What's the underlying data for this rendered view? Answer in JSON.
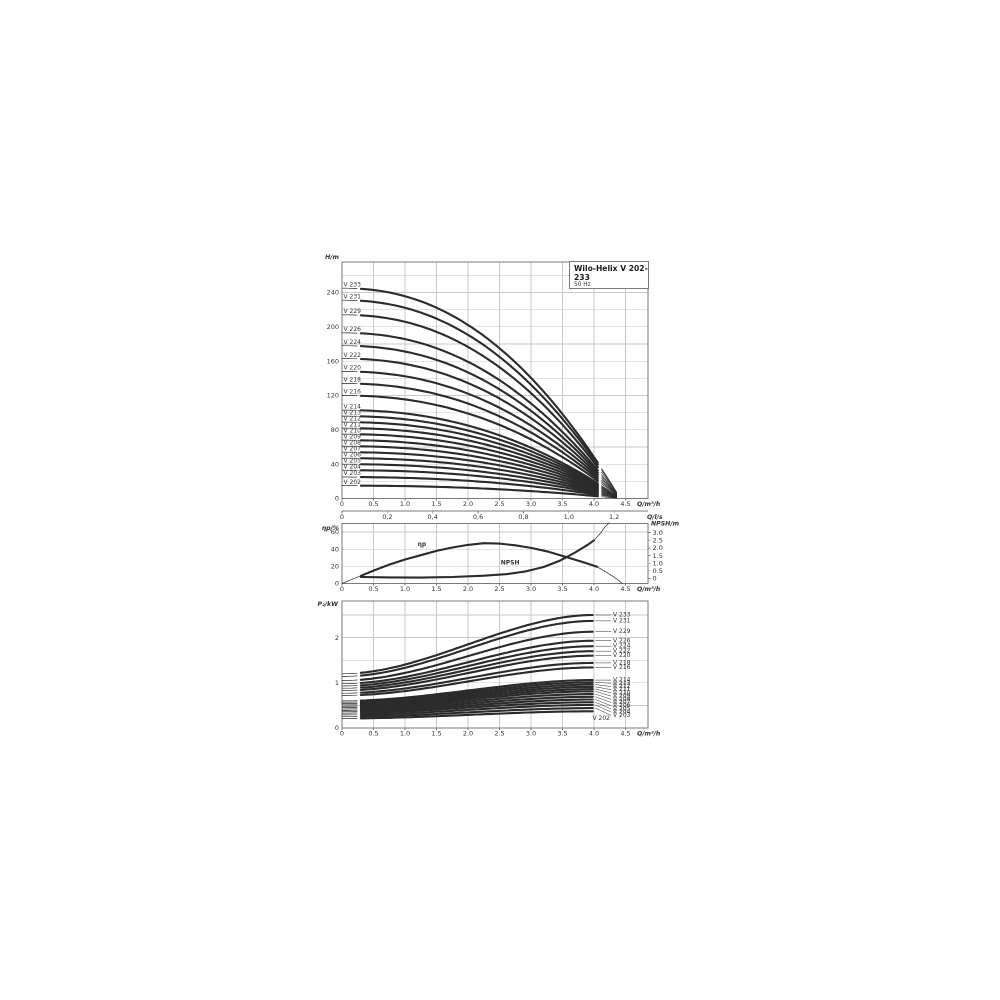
{
  "title_box": {
    "title": "Wilo-Helix V 202-233",
    "subtitle": "50 Hz"
  },
  "colors": {
    "curve": "#2b2b2b",
    "grid": "#c9c9c9",
    "frame": "#7a7a7a",
    "text": "#333333",
    "label": "#1a1a1a"
  },
  "chart_data": [
    {
      "type": "line",
      "id": "head-flow",
      "ylabel": "H/m",
      "xlabel": "Q/m³/h",
      "x2label": "Q/l/s",
      "xlim": [
        0,
        4.5
      ],
      "ylim": [
        0,
        260
      ],
      "x2lim": [
        0,
        1.2
      ],
      "grid": true,
      "xticks": [
        [
          0,
          "0"
        ],
        [
          0.5,
          "0.5"
        ],
        [
          1,
          "1.0"
        ],
        [
          1.5,
          "1.5"
        ],
        [
          2,
          "2.0"
        ],
        [
          2.5,
          "2.5"
        ],
        [
          3,
          "3.0"
        ],
        [
          3.5,
          "3.5"
        ],
        [
          4,
          "4.0"
        ],
        [
          4.5,
          "4.5"
        ]
      ],
      "yticks": [
        [
          0,
          "0"
        ],
        [
          40,
          "40"
        ],
        [
          80,
          "80"
        ],
        [
          120,
          "120"
        ],
        [
          160,
          "160"
        ],
        [
          200,
          "200"
        ],
        [
          240,
          "240"
        ]
      ],
      "ygrid_step": 20,
      "x2ticks": [
        [
          0,
          "0"
        ],
        [
          0.2,
          "0,2"
        ],
        [
          0.4,
          "0,4"
        ],
        [
          0.6,
          "0,6"
        ],
        [
          0.8,
          "0,8"
        ],
        [
          1.0,
          "1,0"
        ],
        [
          1.2,
          "1,2"
        ]
      ],
      "curve_model": {
        "q_thick_start": 0.3,
        "q_thick_end": 4.12,
        "q_end": 4.42,
        "exponent": 2.2
      },
      "series": [
        {
          "name": "V 233",
          "shutoff_head_m": 245
        },
        {
          "name": "V 231",
          "shutoff_head_m": 231
        },
        {
          "name": "V 229",
          "shutoff_head_m": 214
        },
        {
          "name": "V 226",
          "shutoff_head_m": 193
        },
        {
          "name": "V 224",
          "shutoff_head_m": 178
        },
        {
          "name": "V 222",
          "shutoff_head_m": 163
        },
        {
          "name": "V 220",
          "shutoff_head_m": 148
        },
        {
          "name": "V 218",
          "shutoff_head_m": 134
        },
        {
          "name": "V 216",
          "shutoff_head_m": 120
        },
        {
          "name": "V 214",
          "shutoff_head_m": 103
        },
        {
          "name": "V 213",
          "shutoff_head_m": 96
        },
        {
          "name": "V 212",
          "shutoff_head_m": 89
        },
        {
          "name": "V 211",
          "shutoff_head_m": 82
        },
        {
          "name": "V 210",
          "shutoff_head_m": 75
        },
        {
          "name": "V 209",
          "shutoff_head_m": 68
        },
        {
          "name": "V 208",
          "shutoff_head_m": 61
        },
        {
          "name": "V 207",
          "shutoff_head_m": 54
        },
        {
          "name": "V 206",
          "shutoff_head_m": 47
        },
        {
          "name": "V 205",
          "shutoff_head_m": 40
        },
        {
          "name": "V 204",
          "shutoff_head_m": 33
        },
        {
          "name": "V 203",
          "shutoff_head_m": 25
        },
        {
          "name": "V 202",
          "shutoff_head_m": 15
        }
      ]
    },
    {
      "type": "line",
      "id": "efficiency-npsh",
      "ylabel": "ηp/%",
      "y2label": "NPSH/m",
      "xlabel": "Q/m³/h",
      "xlim": [
        0,
        4.5
      ],
      "ylim": [
        0,
        70
      ],
      "y2lim": [
        0,
        3.0
      ],
      "grid": true,
      "xticks": [
        [
          0,
          "0"
        ],
        [
          0.5,
          "0.5"
        ],
        [
          1,
          "1.0"
        ],
        [
          1.5,
          "1.5"
        ],
        [
          2,
          "2.0"
        ],
        [
          2.5,
          "2.5"
        ],
        [
          3,
          "3.0"
        ],
        [
          3.5,
          "3.5"
        ],
        [
          4,
          "4.0"
        ],
        [
          4.5,
          "4.5"
        ]
      ],
      "yticks": [
        [
          0,
          "0"
        ],
        [
          20,
          "20"
        ],
        [
          40,
          "40"
        ],
        [
          60,
          "60"
        ]
      ],
      "y2ticks": [
        [
          0,
          "0"
        ],
        [
          0.5,
          "0.5"
        ],
        [
          1.0,
          "1.0"
        ],
        [
          1.5,
          "1.5"
        ],
        [
          2.0,
          "2.0"
        ],
        [
          2.5,
          "2.5"
        ],
        [
          3.0,
          "3.0"
        ]
      ],
      "series": [
        {
          "name": "ηp",
          "axis": "left",
          "thick_range": [
            0.3,
            4.05
          ],
          "points": [
            [
              0,
              0
            ],
            [
              0.15,
              4.5
            ],
            [
              0.3,
              9
            ],
            [
              0.5,
              15
            ],
            [
              0.75,
              22
            ],
            [
              1.0,
              28
            ],
            [
              1.25,
              33
            ],
            [
              1.5,
              38
            ],
            [
              1.75,
              42
            ],
            [
              2.0,
              45
            ],
            [
              2.25,
              47
            ],
            [
              2.5,
              46.5
            ],
            [
              2.75,
              44.5
            ],
            [
              3.0,
              41.5
            ],
            [
              3.25,
              37.5
            ],
            [
              3.55,
              31
            ],
            [
              3.8,
              25.5
            ],
            [
              4.05,
              19.5
            ],
            [
              4.2,
              13
            ],
            [
              4.35,
              6
            ],
            [
              4.45,
              0
            ]
          ],
          "label_pos": [
            1.2,
            43.5
          ]
        },
        {
          "name": "NPSH",
          "axis": "right",
          "thick_range": [
            0.3,
            4.0
          ],
          "points": [
            [
              0.3,
              0.1
            ],
            [
              0.75,
              0.07
            ],
            [
              1.25,
              0.06
            ],
            [
              1.75,
              0.1
            ],
            [
              2.25,
              0.18
            ],
            [
              2.6,
              0.28
            ],
            [
              2.9,
              0.45
            ],
            [
              3.2,
              0.75
            ],
            [
              3.45,
              1.15
            ],
            [
              3.7,
              1.7
            ],
            [
              3.9,
              2.2
            ],
            [
              4.0,
              2.5
            ],
            [
              4.1,
              2.95
            ],
            [
              4.18,
              3.4
            ],
            [
              4.24,
              3.65
            ]
          ],
          "label_pos": [
            2.52,
            22
          ]
        }
      ]
    },
    {
      "type": "line",
      "id": "power",
      "ylabel": "P₂/kW",
      "xlabel": "Q/m³/h",
      "xlim": [
        0,
        4.5
      ],
      "ylim": [
        0,
        2.8
      ],
      "grid": true,
      "xticks": [
        [
          0,
          "0"
        ],
        [
          0.5,
          "0.5"
        ],
        [
          1,
          "1.0"
        ],
        [
          1.5,
          "1.5"
        ],
        [
          2,
          "2.0"
        ],
        [
          2.5,
          "2.5"
        ],
        [
          3,
          "3.0"
        ],
        [
          3.5,
          "3.5"
        ],
        [
          4,
          "4.0"
        ],
        [
          4.5,
          "4.5"
        ]
      ],
      "yticks": [
        [
          0,
          "0"
        ],
        [
          1,
          "1"
        ],
        [
          2,
          "2"
        ]
      ],
      "ygrid_step": 0.5,
      "curve_model": {
        "q_thick_start": 0.3,
        "q_thick_end": 4.0
      },
      "series": [
        {
          "name": "V 233",
          "p2_kw_at_q0": 1.2,
          "p2_kw_at_q4": 2.5
        },
        {
          "name": "V 231",
          "p2_kw_at_q0": 1.14,
          "p2_kw_at_q4": 2.37
        },
        {
          "name": "V 229",
          "p2_kw_at_q0": 1.05,
          "p2_kw_at_q4": 2.13
        },
        {
          "name": "V 226",
          "p2_kw_at_q0": 0.98,
          "p2_kw_at_q4": 1.93
        },
        {
          "name": "V 224",
          "p2_kw_at_q0": 0.93,
          "p2_kw_at_q4": 1.81
        },
        {
          "name": "V 222",
          "p2_kw_at_q0": 0.88,
          "p2_kw_at_q4": 1.7
        },
        {
          "name": "V 220",
          "p2_kw_at_q0": 0.83,
          "p2_kw_at_q4": 1.6
        },
        {
          "name": "V 218",
          "p2_kw_at_q0": 0.77,
          "p2_kw_at_q4": 1.44
        },
        {
          "name": "V 216",
          "p2_kw_at_q0": 0.72,
          "p2_kw_at_q4": 1.34
        },
        {
          "name": "V 214",
          "p2_kw_at_q0": 0.6,
          "p2_kw_at_q4": 1.06
        },
        {
          "name": "V 213",
          "p2_kw_at_q0": 0.57,
          "p2_kw_at_q4": 1.01
        },
        {
          "name": "V 212",
          "p2_kw_at_q0": 0.54,
          "p2_kw_at_q4": 0.96
        },
        {
          "name": "V 211",
          "p2_kw_at_q0": 0.51,
          "p2_kw_at_q4": 0.91
        },
        {
          "name": "V 210",
          "p2_kw_at_q0": 0.48,
          "p2_kw_at_q4": 0.86
        },
        {
          "name": "V 209",
          "p2_kw_at_q0": 0.45,
          "p2_kw_at_q4": 0.81
        },
        {
          "name": "V 208",
          "p2_kw_at_q0": 0.42,
          "p2_kw_at_q4": 0.75
        },
        {
          "name": "V 207",
          "p2_kw_at_q0": 0.39,
          "p2_kw_at_q4": 0.69
        },
        {
          "name": "V 206",
          "p2_kw_at_q0": 0.36,
          "p2_kw_at_q4": 0.63
        },
        {
          "name": "V 205",
          "p2_kw_at_q0": 0.33,
          "p2_kw_at_q4": 0.57
        },
        {
          "name": "V 204",
          "p2_kw_at_q0": 0.29,
          "p2_kw_at_q4": 0.51
        },
        {
          "name": "V 203",
          "p2_kw_at_q0": 0.25,
          "p2_kw_at_q4": 0.44
        },
        {
          "name": "V 202",
          "p2_kw_at_q0": 0.21,
          "p2_kw_at_q4": 0.37
        }
      ]
    }
  ]
}
